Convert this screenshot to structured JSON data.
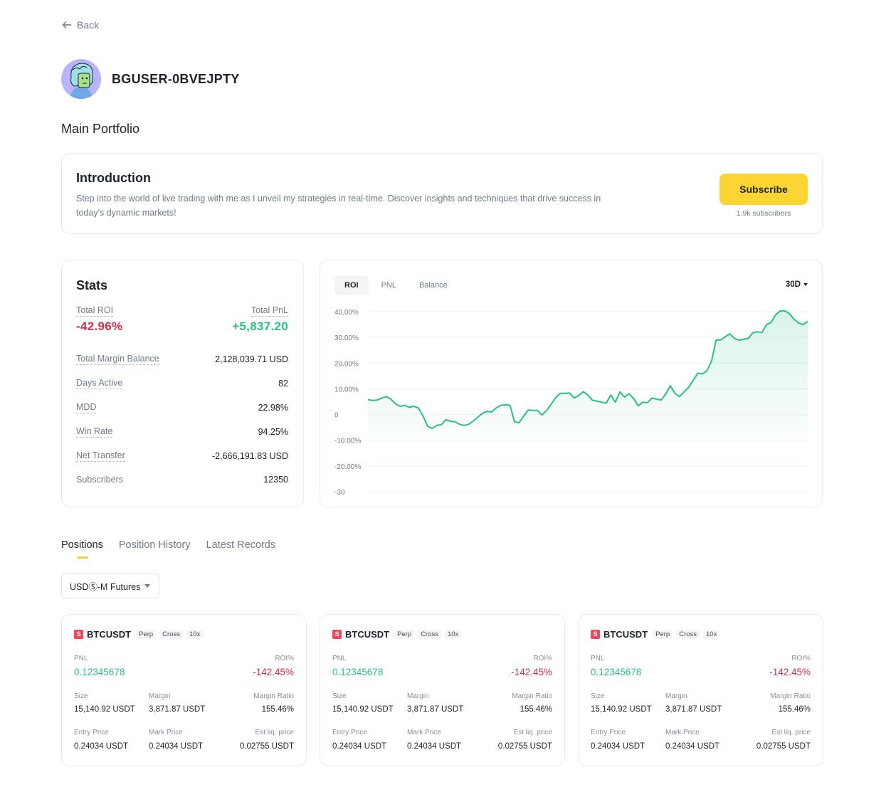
{
  "nav": {
    "back_label": "Back"
  },
  "profile": {
    "username": "BGUSER-0BVEJPTY"
  },
  "portfolio_title": "Main Portfolio",
  "intro": {
    "title": "Introduction",
    "text": "Step into the world of live trading with me as I unveil my strategies in real-time. Discover insights and techniques that drive success in today's dynamic markets!",
    "subscribe_label": "Subscribe",
    "subscribers_text": "1.9k subscribers"
  },
  "stats": {
    "title": "Stats",
    "total_roi_label": "Total ROI",
    "total_roi_value": "-42.96%",
    "total_pnl_label": "Total PnL",
    "total_pnl_value": "+5,837.20",
    "rows": [
      {
        "label": "Total Margin Balance",
        "value": "2,128,039.71 USD"
      },
      {
        "label": "Days Active",
        "value": "82"
      },
      {
        "label": "MDD",
        "value": "22.98%"
      },
      {
        "label": "Win Rate",
        "value": "94.25%"
      },
      {
        "label": "Net Transfer",
        "value": "-2,666,191.83 USD"
      },
      {
        "label": "Subscribers",
        "value": "12350"
      }
    ]
  },
  "chart_tabs": [
    "ROI",
    "PNL",
    "Balance"
  ],
  "chart_period": "30D",
  "chart_data": {
    "type": "area",
    "title": "",
    "xlabel": "",
    "ylabel": "",
    "y_ticks": [
      "40.00%",
      "30.00%",
      "20.00%",
      "10.00%",
      "0",
      "-10.00%",
      "-20.00%",
      "-30"
    ],
    "ylim": [
      -30,
      40
    ],
    "grid": true,
    "color": "#2ebd85",
    "values": [
      5.8,
      5.5,
      5.6,
      6.4,
      7.0,
      6.0,
      4.2,
      3.2,
      3.6,
      2.8,
      3.2,
      2.6,
      -0.5,
      -4.5,
      -5.4,
      -4.2,
      -4.0,
      -2.0,
      -2.6,
      -2.8,
      -3.8,
      -4.2,
      -3.8,
      -2.5,
      -1.0,
      0.5,
      1.2,
      1.0,
      2.6,
      3.6,
      3.8,
      3.6,
      -2.8,
      -3.2,
      -0.6,
      1.8,
      1.6,
      1.6,
      -0.2,
      1.6,
      4.0,
      6.6,
      8.3,
      8.2,
      8.4,
      6.4,
      7.4,
      8.9,
      7.6,
      5.6,
      5.2,
      4.8,
      4.4,
      7.6,
      4.8,
      8.8,
      6.8,
      8.1,
      6.2,
      3.4,
      4.8,
      4.6,
      6.4,
      6.0,
      5.6,
      8.0,
      11.2,
      8.3,
      7.0,
      8.8,
      10.6,
      13.3,
      16.1,
      15.8,
      17.0,
      20.8,
      29.0,
      29.0,
      30.3,
      31.4,
      29.6,
      28.9,
      29.3,
      29.6,
      31.8,
      32.2,
      31.9,
      35.0,
      35.8,
      38.8,
      40.3,
      40.3,
      39.2,
      37.1,
      35.6,
      35.0,
      36.3
    ]
  },
  "tabs": [
    "Positions",
    "Position History",
    "Latest Records"
  ],
  "filter_label": "USDⓈ-M Futures",
  "positions": [
    {
      "symbol": "BTCUSDT",
      "badge": "S",
      "tags": [
        "Perp",
        "Cross",
        "10x"
      ],
      "pnl_label": "PNL",
      "pnl": "0.12345678",
      "roi_label": "ROI%",
      "roi": "-142.45%",
      "size_label": "Size",
      "size": "15,140.92 USDT",
      "margin_label": "Margin",
      "margin": "3,871.87 USDT",
      "margin_ratio_label": "Margin Ratio",
      "margin_ratio": "155.46%",
      "entry_label": "Entry Price",
      "entry": "0.24034 USDT",
      "mark_label": "Mark Price",
      "mark": "0.24034 USDT",
      "liq_label": "Est liq. price",
      "liq": "0.02755 USDT"
    },
    {
      "symbol": "BTCUSDT",
      "badge": "S",
      "tags": [
        "Perp",
        "Cross",
        "10x"
      ],
      "pnl_label": "PNL",
      "pnl": "0.12345678",
      "roi_label": "ROI%",
      "roi": "-142.45%",
      "size_label": "Size",
      "size": "15,140.92 USDT",
      "margin_label": "Margin",
      "margin": "3,871.87 USDT",
      "margin_ratio_label": "Margin Ratio",
      "margin_ratio": "155.46%",
      "entry_label": "Entry Price",
      "entry": "0.24034 USDT",
      "mark_label": "Mark Price",
      "mark": "0.24034 USDT",
      "liq_label": "Est liq. price",
      "liq": "0.02755 USDT"
    },
    {
      "symbol": "BTCUSDT",
      "badge": "S",
      "tags": [
        "Perp",
        "Cross",
        "10x"
      ],
      "pnl_label": "PNL",
      "pnl": "0.12345678",
      "roi_label": "ROI%",
      "roi": "-142.45%",
      "size_label": "Size",
      "size": "15,140.92 USDT",
      "margin_label": "Margin",
      "margin": "3,871.87 USDT",
      "margin_ratio_label": "Margin Ratio",
      "margin_ratio": "155.46%",
      "entry_label": "Entry Price",
      "entry": "0.24034 USDT",
      "mark_label": "Mark Price",
      "mark": "0.24034 USDT",
      "liq_label": "Est liq. price",
      "liq": "0.02755 USDT"
    }
  ]
}
